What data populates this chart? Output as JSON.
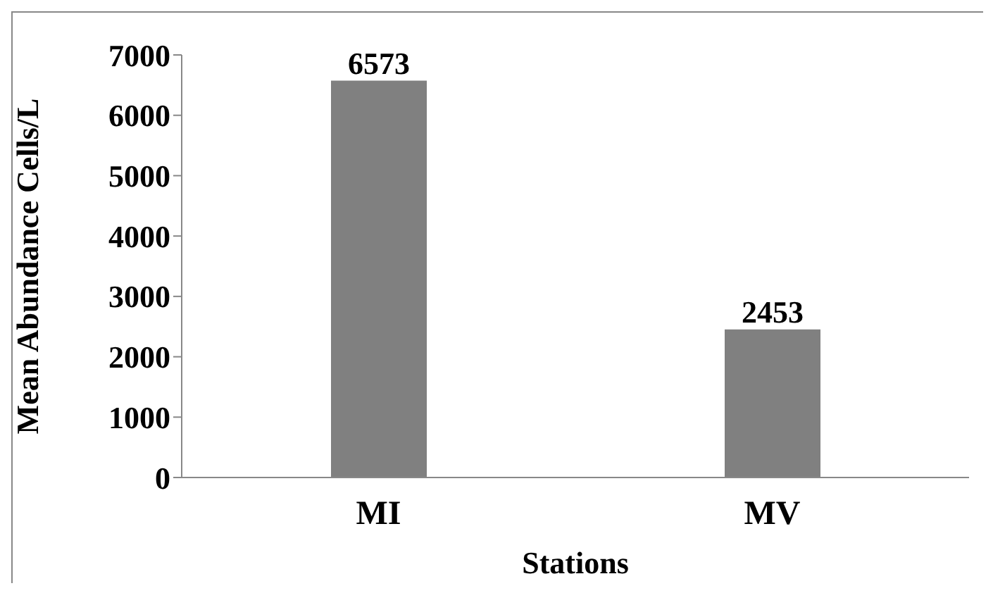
{
  "chart_data": {
    "type": "bar",
    "xlabel": "Stations",
    "ylabel": "Mean Abundance Cells/L",
    "categories": [
      "MI",
      "MV"
    ],
    "values": [
      6573,
      2453
    ],
    "color": "#808080",
    "ylim": [
      0,
      7000
    ],
    "yticks": [
      0,
      1000,
      2000,
      3000,
      4000,
      5000,
      6000,
      7000
    ],
    "data_labels": true,
    "grid": false,
    "legend": false
  }
}
